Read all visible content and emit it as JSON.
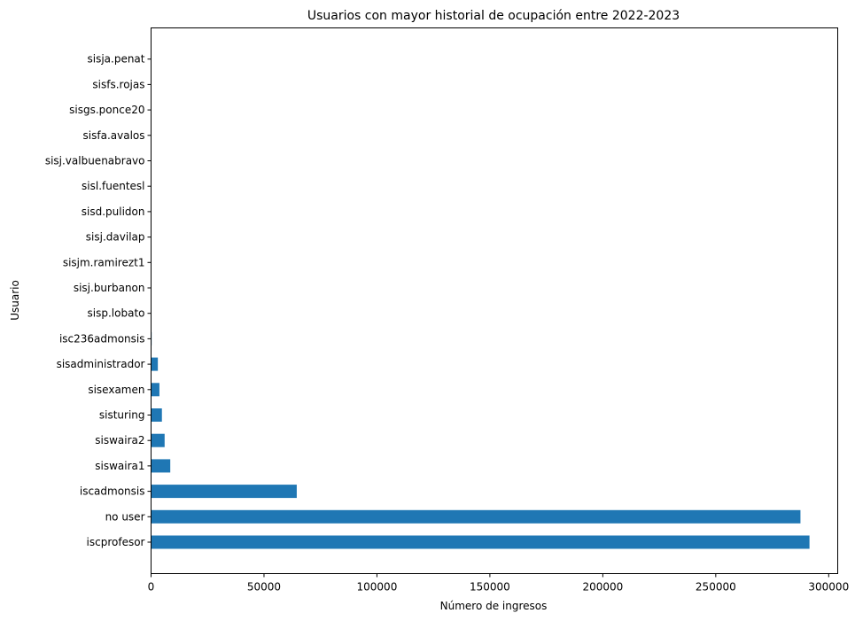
{
  "chart_data": {
    "type": "bar",
    "orientation": "horizontal",
    "title": "Usuarios con mayor historial de ocupación entre 2022-2023",
    "xlabel": "Número de ingresos",
    "ylabel": "Usuario",
    "categories": [
      "iscprofesor",
      "no user",
      "iscadmonsis",
      "siswaira1",
      "siswaira2",
      "sisturing",
      "sisexamen",
      "sisadministrador",
      "isc236admonsis",
      "sisp.lobato",
      "sisj.burbanon",
      "sisjm.ramirezt1",
      "sisj.davilap",
      "sisd.pulidon",
      "sisl.fuentesl",
      "sisj.valbuenabravo",
      "sisfa.avalos",
      "sisgs.ponce20",
      "sisfs.rojas",
      "sisja.penat"
    ],
    "values": [
      291500,
      287500,
      64500,
      8500,
      6000,
      4800,
      3700,
      3000,
      250,
      200,
      180,
      160,
      150,
      140,
      130,
      120,
      110,
      100,
      90,
      80
    ],
    "xlim": [
      0,
      304000
    ],
    "xticks": [
      0,
      50000,
      100000,
      150000,
      200000,
      250000,
      300000
    ],
    "xtick_labels": [
      "0",
      "50000",
      "100000",
      "150000",
      "200000",
      "250000",
      "300000"
    ],
    "grid": false,
    "color": "#1f77b4"
  }
}
